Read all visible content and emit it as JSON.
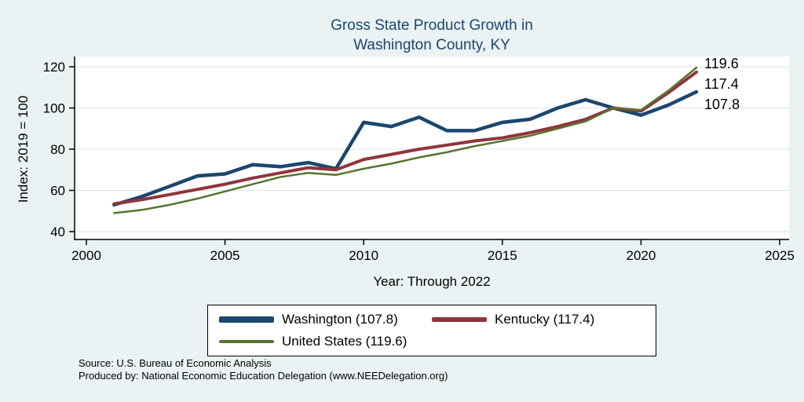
{
  "title": {
    "line1": "Gross State Product Growth in",
    "line2": "Washington County, KY"
  },
  "axes": {
    "y_label": "Index: 2019 = 100",
    "x_label": "Year: Through 2022",
    "y_ticks": [
      40,
      60,
      80,
      100,
      120
    ],
    "x_ticks": [
      2000,
      2005,
      2010,
      2015,
      2020,
      2025
    ]
  },
  "chart_data": {
    "type": "line",
    "title": "Gross State Product Growth in Washington County, KY",
    "xlabel": "Year: Through 2022",
    "ylabel": "Index: 2019 = 100",
    "xlim": [
      2000,
      2025
    ],
    "ylim": [
      40,
      120
    ],
    "grid": "horizontal",
    "legend_position": "bottom",
    "x": [
      2001,
      2002,
      2003,
      2004,
      2005,
      2006,
      2007,
      2008,
      2009,
      2010,
      2011,
      2012,
      2013,
      2014,
      2015,
      2016,
      2017,
      2018,
      2019,
      2020,
      2021,
      2022
    ],
    "series": [
      {
        "name": "Washington",
        "color": "#1a476f",
        "end_label": "107.8",
        "final_value": 107.8,
        "values": [
          53,
          57,
          62,
          67,
          68,
          72.5,
          71.5,
          73.5,
          70.5,
          93,
          91,
          95.5,
          89,
          89,
          93,
          94.5,
          100,
          104,
          100,
          96.5,
          101.5,
          107.8
        ]
      },
      {
        "name": "Kentucky",
        "color": "#90353b",
        "end_label": "117.4",
        "final_value": 117.4,
        "values": [
          53.5,
          55.5,
          58,
          60.5,
          63,
          66,
          68.5,
          71,
          70,
          75,
          77.5,
          80,
          82,
          84,
          85.5,
          88,
          91,
          94.5,
          100,
          98.5,
          107.5,
          117.4
        ]
      },
      {
        "name": "United States",
        "color": "#55752f",
        "end_label": "119.6",
        "final_value": 119.6,
        "values": [
          49,
          50.5,
          53,
          56,
          59.5,
          63,
          66.5,
          68.5,
          67.5,
          70.5,
          73,
          76,
          78.5,
          81.5,
          84,
          86.5,
          90,
          93.5,
          100,
          99,
          108.5,
          119.6
        ]
      }
    ]
  },
  "legend": {
    "items": [
      {
        "label": "Washington  (107.8)"
      },
      {
        "label": "Kentucky (117.4)"
      },
      {
        "label": "United States (119.6)"
      }
    ]
  },
  "footer": {
    "source": "Source: U.S. Bureau of Economic Analysis",
    "produced": "Produced by: National Economic Education Delegation (www.NEEDelegation.org)"
  },
  "colors": {
    "background": "#eaf2f3",
    "plot_background": "#ffffff",
    "title": "#1a476f",
    "axis": "#000000",
    "gridline": "#d9e6ec"
  }
}
